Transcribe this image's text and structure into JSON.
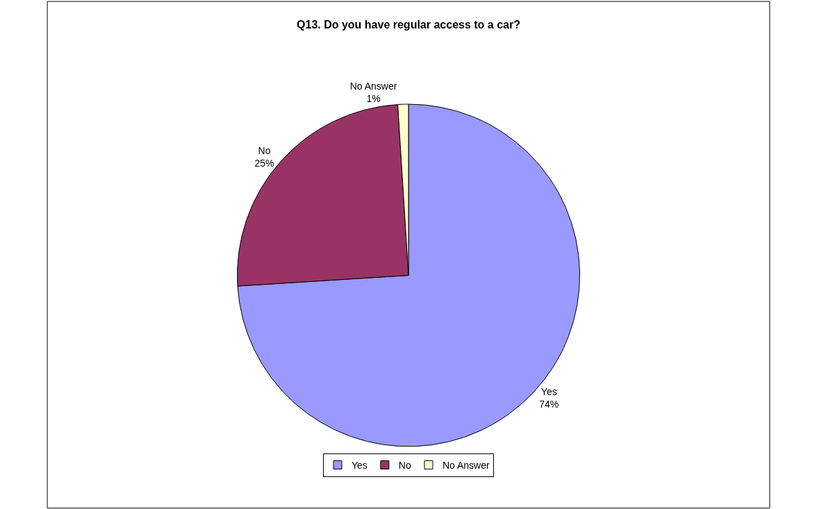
{
  "chart_data": {
    "type": "pie",
    "title": "Q13. Do you have regular access to a car?",
    "categories": [
      "Yes",
      "No",
      "No Answer"
    ],
    "values": [
      74,
      25,
      1
    ],
    "colors": [
      "#9999ff",
      "#993366",
      "#ffffcc"
    ],
    "value_labels": [
      "74%",
      "25%",
      "1%"
    ],
    "legend": "bottom"
  }
}
